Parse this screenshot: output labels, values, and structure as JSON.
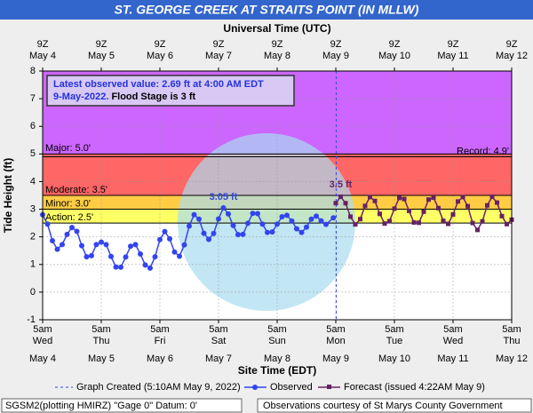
{
  "chart_data": {
    "type": "line",
    "title": "ST. GEORGE CREEK AT STRAITS POINT (IN MLLW)",
    "x2_label": "Universal Time (UTC)",
    "x_label": "Site Time (EDT)",
    "y_label": "Tide Height (ft)",
    "xlim": [
      "2022-05-04T05:00",
      "2022-05-12T05:00"
    ],
    "xticks": [
      {
        "value": "2022-05-04T05:00",
        "label": "5am",
        "weekday": "Wed",
        "date": "May 4",
        "utc": "9Z"
      },
      {
        "value": "2022-05-05T05:00",
        "label": "5am",
        "weekday": "Thu",
        "date": "May 5",
        "utc": "9Z"
      },
      {
        "value": "2022-05-06T05:00",
        "label": "5am",
        "weekday": "Fri",
        "date": "May 6",
        "utc": "9Z"
      },
      {
        "value": "2022-05-07T05:00",
        "label": "5am",
        "weekday": "Sat",
        "date": "May 7",
        "utc": "9Z"
      },
      {
        "value": "2022-05-08T05:00",
        "label": "5am",
        "weekday": "Sun",
        "date": "May 8",
        "utc": "9Z"
      },
      {
        "value": "2022-05-09T05:00",
        "label": "5am",
        "weekday": "Mon",
        "date": "May 9",
        "utc": "9Z"
      },
      {
        "value": "2022-05-10T05:00",
        "label": "5am",
        "weekday": "Tue",
        "date": "May 10",
        "utc": "9Z"
      },
      {
        "value": "2022-05-11T05:00",
        "label": "5am",
        "weekday": "Wed",
        "date": "May 11",
        "utc": "9Z"
      },
      {
        "value": "2022-05-12T05:00",
        "label": "5am",
        "weekday": "Thu",
        "date": "May 12",
        "utc": "9Z"
      }
    ],
    "ylim": [
      -1,
      8
    ],
    "yticks": [
      -1,
      0,
      1,
      2,
      3,
      4,
      5,
      6,
      7,
      8
    ],
    "grid": true,
    "thresholds": [
      {
        "label": "Action: 2.5'",
        "value": 2.5,
        "color": "#ffff66"
      },
      {
        "label": "Minor: 3.0'",
        "value": 3.0,
        "color": "#ffcc44"
      },
      {
        "label": "Moderate: 3.5'",
        "value": 3.5,
        "color": "#ff6666"
      },
      {
        "label": "Major: 5.0'",
        "value": 5.0,
        "color": "#cc66ff"
      }
    ],
    "record": {
      "label": "Record: 4.9'",
      "value": 4.9
    },
    "info": {
      "line1": "Latest observed value: 2.69 ft at 4:00 AM EDT",
      "date": "9-May-2022.",
      "flood": "Flood Stage is 3 ft"
    },
    "graph_created": {
      "label": "Graph Created (5:10AM May 9, 2022)",
      "time": "2022-05-09T05:10"
    },
    "annotations": [
      {
        "text": "3.05 ft",
        "x": "2022-05-07T07:00",
        "y": 3.05,
        "color": "#3344dd"
      },
      {
        "text": "3.5 ft",
        "x": "2022-05-09T07:00",
        "y": 3.5,
        "color": "#662266"
      }
    ],
    "series": [
      {
        "name": "Observed",
        "color": "#3344ee",
        "marker": "circle",
        "x": [
          "2022-05-04T05:00",
          "2022-05-04T07:00",
          "2022-05-04T09:00",
          "2022-05-04T11:00",
          "2022-05-04T13:00",
          "2022-05-04T15:00",
          "2022-05-04T17:00",
          "2022-05-04T19:00",
          "2022-05-04T21:00",
          "2022-05-04T23:00",
          "2022-05-05T01:00",
          "2022-05-05T03:00",
          "2022-05-05T05:00",
          "2022-05-05T07:00",
          "2022-05-05T09:00",
          "2022-05-05T11:00",
          "2022-05-05T13:00",
          "2022-05-05T15:00",
          "2022-05-05T17:00",
          "2022-05-05T19:00",
          "2022-05-05T21:00",
          "2022-05-05T23:00",
          "2022-05-06T01:00",
          "2022-05-06T03:00",
          "2022-05-06T05:00",
          "2022-05-06T07:00",
          "2022-05-06T09:00",
          "2022-05-06T11:00",
          "2022-05-06T13:00",
          "2022-05-06T15:00",
          "2022-05-06T17:00",
          "2022-05-06T19:00",
          "2022-05-06T21:00",
          "2022-05-06T23:00",
          "2022-05-07T01:00",
          "2022-05-07T03:00",
          "2022-05-07T05:00",
          "2022-05-07T07:00",
          "2022-05-07T09:00",
          "2022-05-07T11:00",
          "2022-05-07T13:00",
          "2022-05-07T15:00",
          "2022-05-07T17:00",
          "2022-05-07T19:00",
          "2022-05-07T21:00",
          "2022-05-07T23:00",
          "2022-05-08T01:00",
          "2022-05-08T03:00",
          "2022-05-08T05:00",
          "2022-05-08T07:00",
          "2022-05-08T09:00",
          "2022-05-08T11:00",
          "2022-05-08T13:00",
          "2022-05-08T15:00",
          "2022-05-08T17:00",
          "2022-05-08T19:00",
          "2022-05-08T21:00",
          "2022-05-08T23:00",
          "2022-05-09T01:00",
          "2022-05-09T04:00"
        ],
        "values": [
          2.8,
          2.46,
          1.86,
          1.55,
          1.72,
          2.09,
          2.34,
          2.2,
          1.68,
          1.28,
          1.32,
          1.72,
          1.81,
          1.72,
          1.29,
          0.91,
          0.9,
          1.27,
          1.66,
          1.72,
          1.38,
          0.98,
          0.87,
          1.28,
          1.9,
          2.19,
          1.93,
          1.45,
          1.3,
          1.71,
          2.39,
          2.8,
          2.64,
          2.13,
          1.91,
          2.12,
          2.65,
          3.05,
          2.83,
          2.41,
          2.08,
          2.09,
          2.49,
          2.85,
          2.84,
          2.46,
          2.16,
          2.18,
          2.46,
          2.73,
          2.78,
          2.57,
          2.29,
          2.16,
          2.35,
          2.64,
          2.75,
          2.58,
          2.45,
          2.69
        ]
      },
      {
        "name": "Forecast (issued 4:22AM May 9)",
        "color": "#662266",
        "marker": "square",
        "x": [
          "2022-05-09T05:00",
          "2022-05-09T07:00",
          "2022-05-09T09:00",
          "2022-05-09T11:00",
          "2022-05-09T13:00",
          "2022-05-09T15:00",
          "2022-05-09T17:00",
          "2022-05-09T19:00",
          "2022-05-09T21:00",
          "2022-05-09T23:00",
          "2022-05-10T01:00",
          "2022-05-10T03:00",
          "2022-05-10T05:00",
          "2022-05-10T07:00",
          "2022-05-10T09:00",
          "2022-05-10T11:00",
          "2022-05-10T13:00",
          "2022-05-10T15:00",
          "2022-05-10T17:00",
          "2022-05-10T19:00",
          "2022-05-10T21:00",
          "2022-05-10T23:00",
          "2022-05-11T01:00",
          "2022-05-11T03:00",
          "2022-05-11T05:00",
          "2022-05-11T07:00",
          "2022-05-11T09:00",
          "2022-05-11T11:00",
          "2022-05-11T13:00",
          "2022-05-11T15:00",
          "2022-05-11T17:00",
          "2022-05-11T19:00",
          "2022-05-11T21:00",
          "2022-05-11T23:00",
          "2022-05-12T01:00",
          "2022-05-12T03:00",
          "2022-05-12T05:00"
        ],
        "values": [
          3.22,
          3.45,
          3.22,
          2.73,
          2.45,
          2.64,
          3.12,
          3.44,
          3.3,
          2.83,
          2.48,
          2.57,
          3.02,
          3.41,
          3.37,
          2.94,
          2.52,
          2.51,
          2.91,
          3.35,
          3.42,
          3.04,
          2.58,
          2.47,
          2.81,
          3.28,
          3.44,
          3.11,
          2.5,
          2.25,
          2.56,
          3.14,
          3.45,
          3.24,
          2.75,
          2.46,
          2.62
        ]
      }
    ],
    "footer": {
      "left": "SGSM2(plotting HMIRZ) \"Gage 0\" Datum: 0'",
      "right": "Observations courtesy of St Marys County Government"
    }
  }
}
